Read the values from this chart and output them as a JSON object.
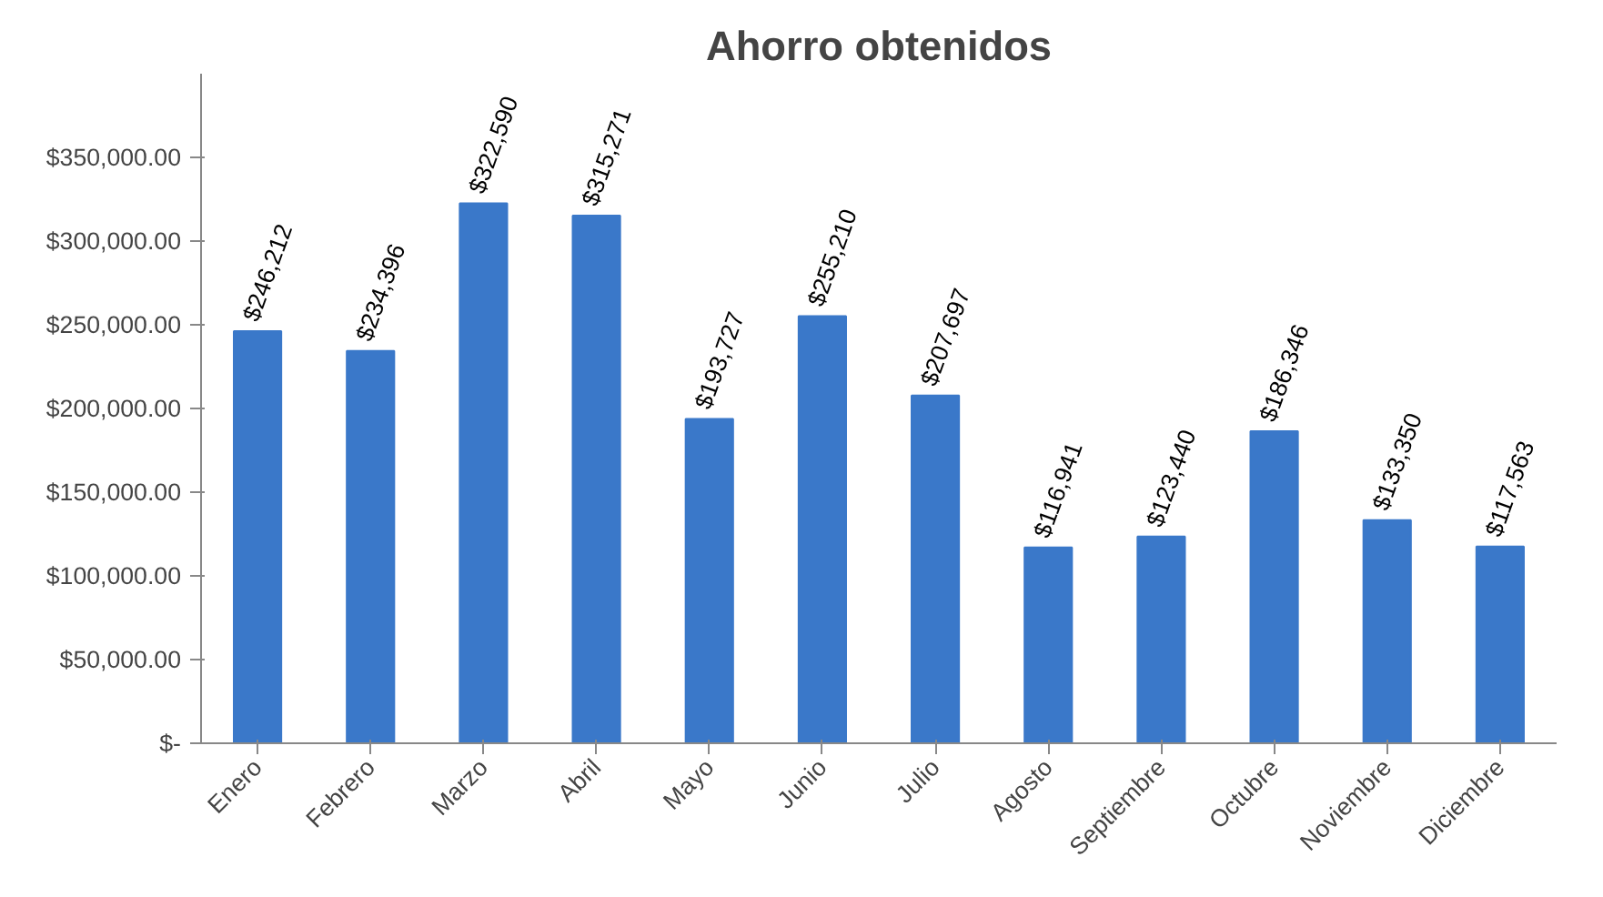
{
  "chart_data": {
    "type": "bar",
    "title": "Ahorro obtenidos",
    "categories": [
      "Enero",
      "Febrero",
      "Marzo",
      "Abril",
      "Mayo",
      "Junio",
      "Julio",
      "Agosto",
      "Septiembre",
      "Octubre",
      "Noviembre",
      "Diciembre"
    ],
    "values": [
      246212,
      234396,
      322590,
      315271,
      193727,
      255210,
      207697,
      116941,
      123440,
      186346,
      133350,
      117563
    ],
    "value_labels": [
      "$246,212",
      "$234,396",
      "$322,590",
      "$315,271",
      "$193,727",
      "$255,210",
      "$207,697",
      "$116,941",
      "$123,440",
      "$186,346",
      "$133,350",
      "$117,563"
    ],
    "color": "#3a78c9",
    "ylim": [
      0,
      400000
    ],
    "yticks": [
      {
        "value": 0,
        "label": "$-"
      },
      {
        "value": 50000,
        "label": "$50,000.00"
      },
      {
        "value": 100000,
        "label": "$100,000.00"
      },
      {
        "value": 150000,
        "label": "$150,000.00"
      },
      {
        "value": 200000,
        "label": "$200,000.00"
      },
      {
        "value": 250000,
        "label": "$250,000.00"
      },
      {
        "value": 300000,
        "label": "$300,000.00"
      },
      {
        "value": 350000,
        "label": "$350,000.00"
      }
    ],
    "grid": false
  }
}
